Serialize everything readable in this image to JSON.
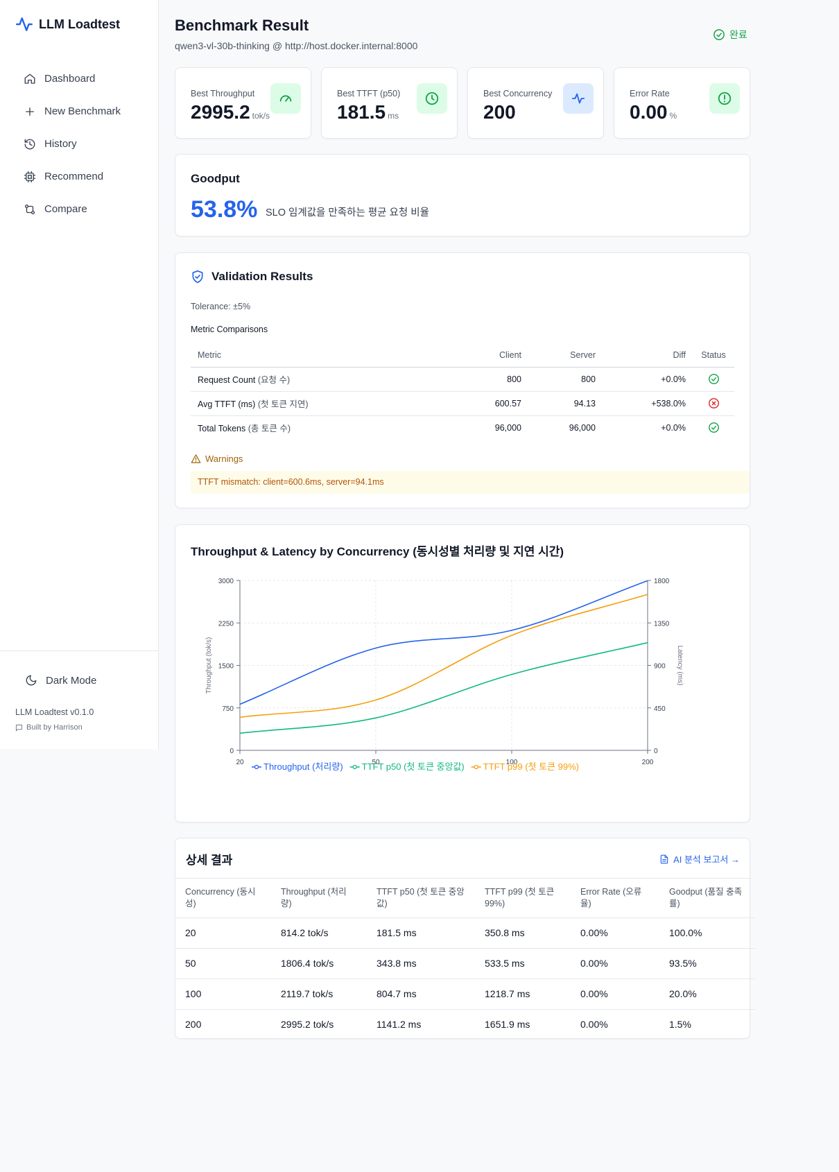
{
  "app": {
    "name": "LLM Loadtest",
    "version": "LLM Loadtest v0.1.0",
    "built_by": "Built by Harrison"
  },
  "sidebar": {
    "items": [
      {
        "label": "Dashboard",
        "icon": "home-icon"
      },
      {
        "label": "New Benchmark",
        "icon": "plus-icon"
      },
      {
        "label": "History",
        "icon": "history-icon"
      },
      {
        "label": "Recommend",
        "icon": "cpu-icon"
      },
      {
        "label": "Compare",
        "icon": "git-compare-icon"
      }
    ],
    "dark_mode_label": "Dark Mode"
  },
  "header": {
    "title": "Benchmark Result",
    "subtitle": "qwen3-vl-30b-thinking @ http://host.docker.internal:8000",
    "status": "완료"
  },
  "stats": [
    {
      "label": "Best Throughput",
      "value": "2995.2",
      "unit": "tok/s",
      "icon": "gauge-icon",
      "color": "#16a34a",
      "bg": "#dcfce7"
    },
    {
      "label": "Best TTFT (p50)",
      "value": "181.5",
      "unit": "ms",
      "icon": "clock-icon",
      "color": "#16a34a",
      "bg": "#dcfce7"
    },
    {
      "label": "Best Concurrency",
      "value": "200",
      "unit": "",
      "icon": "activity-icon",
      "color": "#2563eb",
      "bg": "#dbeafe"
    },
    {
      "label": "Error Rate",
      "value": "0.00",
      "unit": "%",
      "icon": "alert-circle-icon",
      "color": "#16a34a",
      "bg": "#dcfce7"
    }
  ],
  "goodput": {
    "title": "Goodput",
    "value": "53.8%",
    "description": "SLO 임계값을 만족하는 평균 요청 비율"
  },
  "validation": {
    "title": "Validation Results",
    "tolerance": "Tolerance: ±5%",
    "comparisons_title": "Metric Comparisons",
    "columns": [
      "Metric",
      "Client",
      "Server",
      "Diff",
      "Status"
    ],
    "rows": [
      {
        "metric": "Request Count",
        "metric_kr": "(요청 수)",
        "client": "800",
        "server": "800",
        "diff": "+0.0%",
        "ok": true
      },
      {
        "metric": "Avg TTFT (ms)",
        "metric_kr": "(첫 토큰 지연)",
        "client": "600.57",
        "server": "94.13",
        "diff": "+538.0%",
        "ok": false
      },
      {
        "metric": "Total Tokens",
        "metric_kr": "(총 토큰 수)",
        "client": "96,000",
        "server": "96,000",
        "diff": "+0.0%",
        "ok": true
      }
    ],
    "warnings_title": "Warnings",
    "warning_text": "TTFT mismatch: client=600.6ms, server=94.1ms"
  },
  "chart_section_title": "Throughput & Latency by Concurrency (동시성별 처리량 및 지연 시간)",
  "chart_data": {
    "type": "line",
    "x": [
      20,
      50,
      100,
      200
    ],
    "x_ticks": [
      "20",
      "50",
      "100",
      "200"
    ],
    "y_left_label": "Throughput (tok/s)",
    "y_left_ticks": [
      "0",
      "750",
      "1500",
      "2250",
      "3000"
    ],
    "y_left_range": [
      0,
      3000
    ],
    "y_right_label": "Latency (ms)",
    "y_right_ticks": [
      "0",
      "450",
      "900",
      "1350",
      "1800"
    ],
    "y_right_range": [
      0,
      1800
    ],
    "grid": true,
    "legend_position": "bottom",
    "series": [
      {
        "name": "Throughput (처리량)",
        "axis": "left",
        "color": "#2563eb",
        "values": [
          814.2,
          1806.4,
          2119.7,
          2995.2
        ]
      },
      {
        "name": "TTFT p50 (첫 토큰 중앙값)",
        "axis": "right",
        "color": "#10b981",
        "values": [
          181.5,
          343.8,
          804.7,
          1141.2
        ]
      },
      {
        "name": "TTFT p99 (첫 토큰 99%)",
        "axis": "right",
        "color": "#f59e0b",
        "values": [
          350.8,
          533.5,
          1218.7,
          1651.9
        ]
      }
    ]
  },
  "details": {
    "title": "상세 결과",
    "report_link": "AI 분석 보고서 →",
    "columns": [
      "Concurrency (동시성)",
      "Throughput (처리량)",
      "TTFT p50 (첫 토큰 중앙값)",
      "TTFT p99 (첫 토큰 99%)",
      "Error Rate (오류율)",
      "Goodput (품질 충족률)"
    ],
    "rows": [
      [
        "20",
        "814.2 tok/s",
        "181.5 ms",
        "350.8 ms",
        "0.00%",
        "100.0%"
      ],
      [
        "50",
        "1806.4 tok/s",
        "343.8 ms",
        "533.5 ms",
        "0.00%",
        "93.5%"
      ],
      [
        "100",
        "2119.7 tok/s",
        "804.7 ms",
        "1218.7 ms",
        "0.00%",
        "20.0%"
      ],
      [
        "200",
        "2995.2 tok/s",
        "1141.2 ms",
        "1651.9 ms",
        "0.00%",
        "1.5%"
      ]
    ]
  }
}
